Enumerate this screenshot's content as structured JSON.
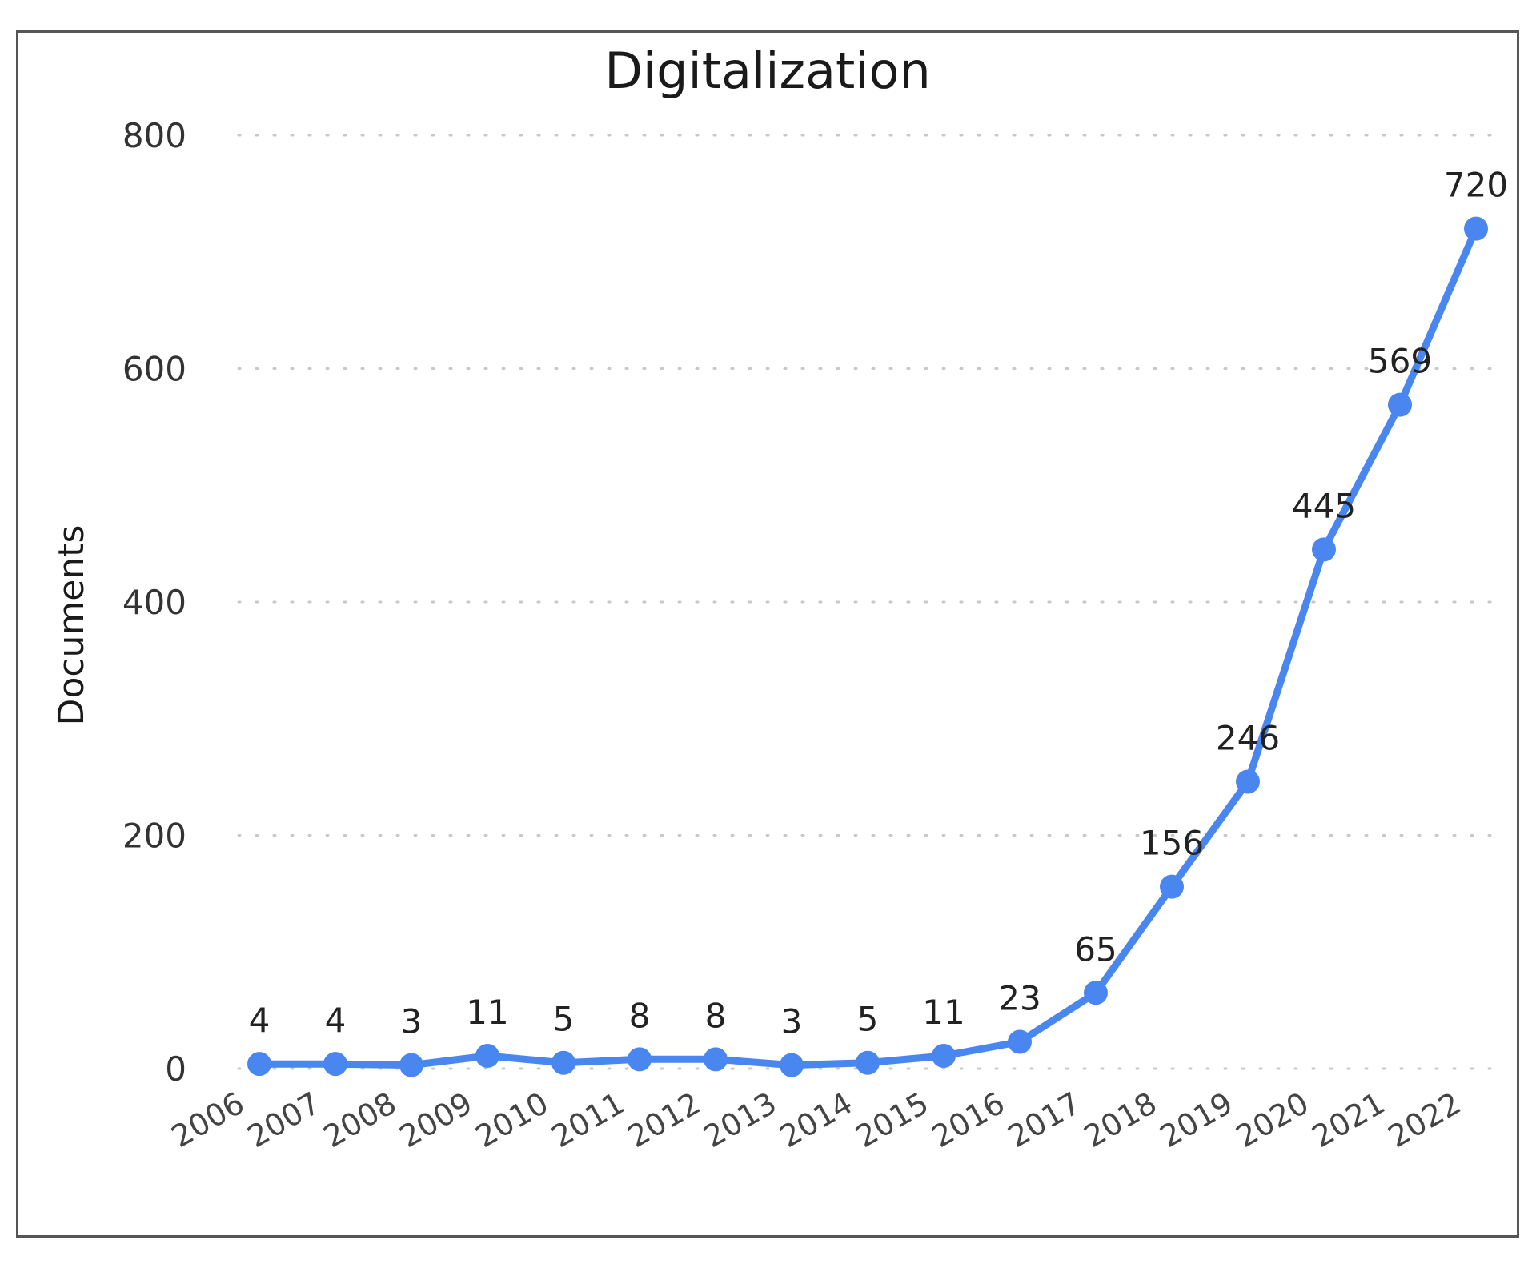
{
  "chart_data": {
    "type": "line",
    "title": "Digitalization",
    "xlabel": "",
    "ylabel": "Documents",
    "ylim": [
      0,
      800
    ],
    "yticks": [
      0,
      200,
      400,
      600,
      800
    ],
    "grid": "horizontal-dotted",
    "categories": [
      "2006",
      "2007",
      "2008",
      "2009",
      "2010",
      "2011",
      "2012",
      "2013",
      "2014",
      "2015",
      "2016",
      "2017",
      "2018",
      "2019",
      "2020",
      "2021",
      "2022"
    ],
    "series": [
      {
        "name": "Documents",
        "values": [
          4,
          4,
          3,
          11,
          5,
          8,
          8,
          3,
          5,
          11,
          23,
          65,
          156,
          246,
          445,
          569,
          720
        ],
        "data_labels": [
          "4",
          "4",
          "3",
          "11",
          "5",
          "8",
          "8",
          "3",
          "5",
          "11",
          "23",
          "65",
          "156",
          "246",
          "445",
          "569",
          "720"
        ]
      }
    ],
    "colors": {
      "line": "#4a86f0",
      "grid": "#c8c8c8"
    }
  }
}
